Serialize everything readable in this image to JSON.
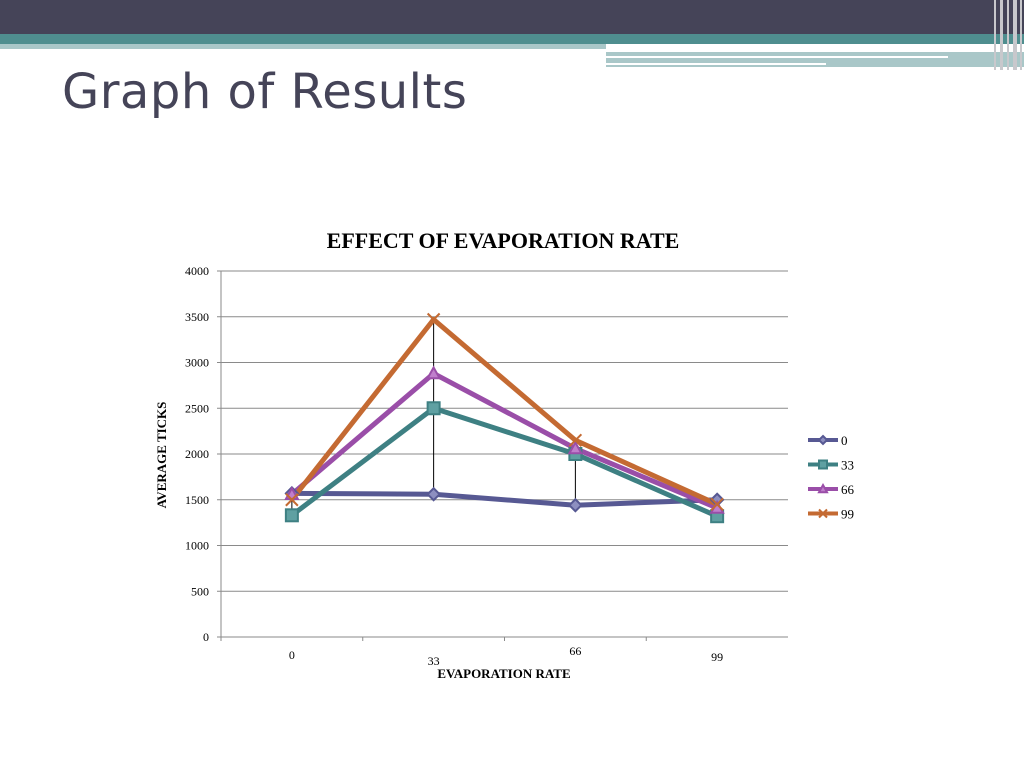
{
  "slide": {
    "title": "Graph of Results"
  },
  "colors": {
    "topbar": "#454458",
    "teal_band": "#4f8e8f",
    "light_band": "#a9c7c8",
    "series_0": "#575993",
    "series_33": "#3e8083",
    "series_66": "#9a4ea8",
    "series_99": "#c46a32"
  },
  "chart_data": {
    "type": "line",
    "title": "EFFECT OF EVAPORATION RATE",
    "xlabel": "EVAPORATION RATE",
    "ylabel": "AVERAGE TICKS",
    "categories": [
      "0",
      "33",
      "66",
      "99"
    ],
    "ylim": [
      0,
      4000
    ],
    "yticks": [
      0,
      500,
      1000,
      1500,
      2000,
      2500,
      3000,
      3500,
      4000
    ],
    "grid": true,
    "legend_position": "right",
    "drop_lines": true,
    "series": [
      {
        "name": "0",
        "values": [
          1570,
          1560,
          1440,
          1500
        ],
        "marker": "diamond",
        "color": "#575993"
      },
      {
        "name": "33",
        "values": [
          1330,
          2500,
          2000,
          1320
        ],
        "marker": "square",
        "color": "#3e8083"
      },
      {
        "name": "66",
        "values": [
          1560,
          2880,
          2060,
          1410
        ],
        "marker": "triangle",
        "color": "#9a4ea8"
      },
      {
        "name": "99",
        "values": [
          1500,
          3470,
          2150,
          1450
        ],
        "marker": "x",
        "color": "#c46a32"
      }
    ]
  }
}
